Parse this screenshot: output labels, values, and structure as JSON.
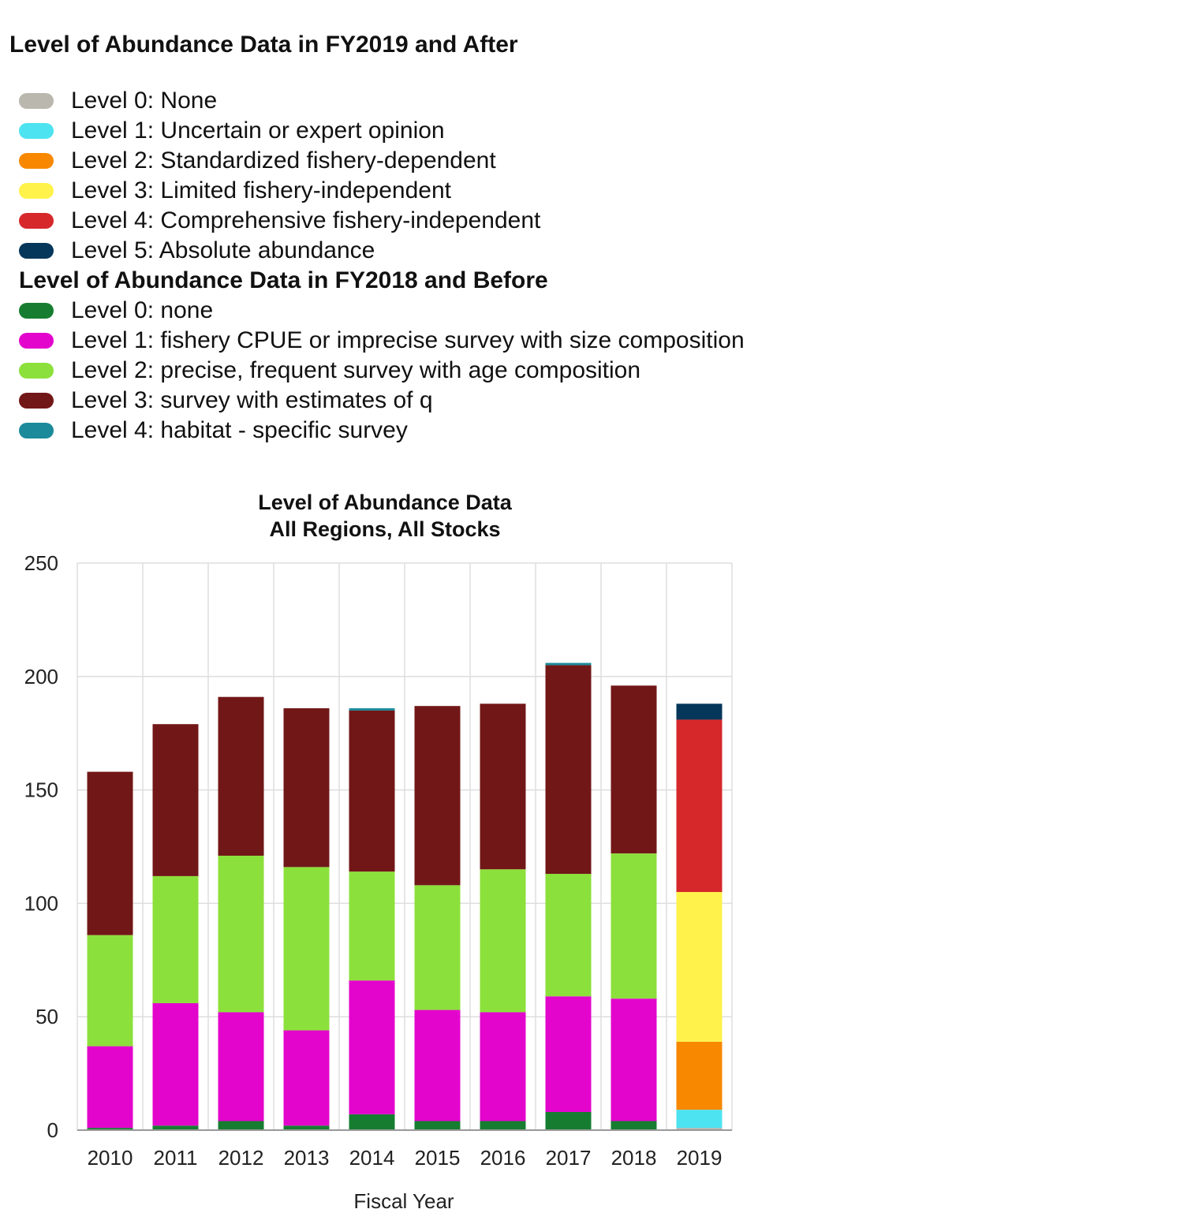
{
  "legend_after": {
    "title": "Level of Abundance Data in FY2019 and After",
    "items": [
      {
        "label": "Level 0: None",
        "color": "#b9b7ae"
      },
      {
        "label": "Level 1: Uncertain or expert opinion",
        "color": "#4de3f0"
      },
      {
        "label": "Level 2: Standardized fishery-dependent",
        "color": "#f78800"
      },
      {
        "label": "Level 3: Limited fishery-independent",
        "color": "#fff24a"
      },
      {
        "label": "Level 4: Comprehensive fishery-independent",
        "color": "#d6282b"
      },
      {
        "label": "Level 5: Absolute abundance",
        "color": "#04375a"
      }
    ]
  },
  "legend_before": {
    "title": "Level of Abundance Data in FY2018 and Before",
    "items": [
      {
        "label": "Level 0: none",
        "color": "#167d30"
      },
      {
        "label": "Level 1: fishery CPUE or imprecise survey with size composition",
        "color": "#e305cc"
      },
      {
        "label": "Level 2: precise, frequent survey with age composition",
        "color": "#8ce03b"
      },
      {
        "label": "Level 3: survey with estimates of q",
        "color": "#721717"
      },
      {
        "label": "Level 4: habitat - specific survey",
        "color": "#1b8a9a"
      }
    ]
  },
  "chart_data": {
    "type": "bar",
    "stacked": true,
    "title": [
      "Level of Abundance Data",
      "All Regions, All Stocks"
    ],
    "xlabel": "Fiscal Year",
    "ylabel": "",
    "ylim": [
      0,
      250
    ],
    "yticks": [
      0,
      50,
      100,
      150,
      200,
      250
    ],
    "grid": true,
    "categories": [
      "2010",
      "2011",
      "2012",
      "2013",
      "2014",
      "2015",
      "2016",
      "2017",
      "2018",
      "2019"
    ],
    "series": [
      {
        "name": "Level 0: none",
        "color": "#167d30",
        "values": [
          1,
          2,
          4,
          2,
          7,
          4,
          4,
          8,
          4,
          0
        ]
      },
      {
        "name": "Level 1: fishery CPUE or imprecise survey with size composition",
        "color": "#e305cc",
        "values": [
          36,
          54,
          48,
          42,
          59,
          49,
          48,
          51,
          54,
          0
        ]
      },
      {
        "name": "Level 2: precise, frequent survey with age composition",
        "color": "#8ce03b",
        "values": [
          49,
          56,
          69,
          72,
          48,
          55,
          63,
          54,
          64,
          0
        ]
      },
      {
        "name": "Level 3: survey with estimates of q",
        "color": "#721717",
        "values": [
          72,
          67,
          70,
          70,
          71,
          79,
          73,
          92,
          74,
          0
        ]
      },
      {
        "name": "Level 4: habitat - specific survey",
        "color": "#1b8a9a",
        "values": [
          0,
          0,
          0,
          0,
          1,
          0,
          0,
          1,
          0,
          0
        ]
      },
      {
        "name": "Level 0: None",
        "color": "#b9b7ae",
        "values": [
          0,
          0,
          0,
          0,
          0,
          0,
          0,
          0,
          0,
          1
        ]
      },
      {
        "name": "Level 1: Uncertain or expert opinion",
        "color": "#4de3f0",
        "values": [
          0,
          0,
          0,
          0,
          0,
          0,
          0,
          0,
          0,
          8
        ]
      },
      {
        "name": "Level 2: Standardized fishery-dependent",
        "color": "#f78800",
        "values": [
          0,
          0,
          0,
          0,
          0,
          0,
          0,
          0,
          0,
          30
        ]
      },
      {
        "name": "Level 3: Limited fishery-independent",
        "color": "#fff24a",
        "values": [
          0,
          0,
          0,
          0,
          0,
          0,
          0,
          0,
          0,
          66
        ]
      },
      {
        "name": "Level 4: Comprehensive fishery-independent",
        "color": "#d6282b",
        "values": [
          0,
          0,
          0,
          0,
          0,
          0,
          0,
          0,
          0,
          76
        ]
      },
      {
        "name": "Level 5: Absolute abundance",
        "color": "#04375a",
        "values": [
          0,
          0,
          0,
          0,
          0,
          0,
          0,
          0,
          0,
          7
        ]
      }
    ]
  }
}
